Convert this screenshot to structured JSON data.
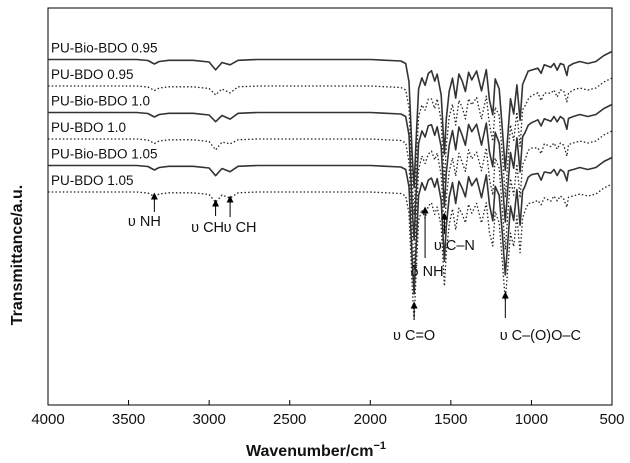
{
  "chart_data": {
    "type": "line",
    "xlabel": "Wavenumber/cm",
    "xlabel_sup": "−1",
    "ylabel": "Transmittance/a.u.",
    "xlim": [
      4000,
      500
    ],
    "x_ticks": [
      "4000",
      "3500",
      "3000",
      "2500",
      "2000",
      "1500",
      "1000",
      "500"
    ],
    "grid": false,
    "legend": "inline labels above each trace",
    "series": [
      {
        "name": "PU-Bio-BDO 0.95",
        "style": "solid",
        "offset": 5
      },
      {
        "name": "PU-BDO 0.95",
        "style": "dotted",
        "offset": 4
      },
      {
        "name": "PU-Bio-BDO 1.0",
        "style": "solid",
        "offset": 3
      },
      {
        "name": "PU-BDO 1.0",
        "style": "dotted",
        "offset": 2
      },
      {
        "name": "PU-Bio-BDO 1.05",
        "style": "solid",
        "offset": 1
      },
      {
        "name": "PU-BDO 1.05",
        "style": "dotted",
        "offset": 0
      }
    ],
    "baseline_shape": [
      [
        4000,
        0
      ],
      [
        3450,
        0
      ],
      [
        3380,
        -1.0
      ],
      [
        3340,
        -4.5
      ],
      [
        3310,
        -2.0
      ],
      [
        3250,
        -0.8
      ],
      [
        3100,
        -0.8
      ],
      [
        3000,
        -2.5
      ],
      [
        2960,
        -10
      ],
      [
        2920,
        -3
      ],
      [
        2870,
        -6
      ],
      [
        2820,
        -0.8
      ],
      [
        2700,
        0
      ],
      [
        2000,
        0
      ],
      [
        1810,
        -1.5
      ],
      [
        1780,
        -4
      ],
      [
        1760,
        -22
      ],
      [
        1740,
        -95
      ],
      [
        1728,
        -128
      ],
      [
        1718,
        -90
      ],
      [
        1700,
        -30
      ],
      [
        1680,
        -18
      ],
      [
        1660,
        -25
      ],
      [
        1640,
        -14
      ],
      [
        1620,
        -12
      ],
      [
        1600,
        -22
      ],
      [
        1585,
        -14
      ],
      [
        1560,
        -35
      ],
      [
        1540,
        -95
      ],
      [
        1528,
        -60
      ],
      [
        1510,
        -32
      ],
      [
        1490,
        -18
      ],
      [
        1470,
        -38
      ],
      [
        1450,
        -15
      ],
      [
        1430,
        -22
      ],
      [
        1410,
        -32
      ],
      [
        1390,
        -12
      ],
      [
        1370,
        -20
      ],
      [
        1340,
        -12
      ],
      [
        1310,
        -32
      ],
      [
        1280,
        -10
      ],
      [
        1260,
        -40
      ],
      [
        1240,
        -55
      ],
      [
        1225,
        -20
      ],
      [
        1200,
        -30
      ],
      [
        1180,
        -70
      ],
      [
        1162,
        -110
      ],
      [
        1145,
        -72
      ],
      [
        1130,
        -40
      ],
      [
        1110,
        -55
      ],
      [
        1090,
        -25
      ],
      [
        1070,
        -60
      ],
      [
        1055,
        -25
      ],
      [
        1040,
        -20
      ],
      [
        1020,
        -12
      ],
      [
        1000,
        -10
      ],
      [
        960,
        -8
      ],
      [
        940,
        -14
      ],
      [
        920,
        -6
      ],
      [
        880,
        -8
      ],
      [
        860,
        -4
      ],
      [
        840,
        -10
      ],
      [
        820,
        -4
      ],
      [
        800,
        -6
      ],
      [
        780,
        -16
      ],
      [
        770,
        -6
      ],
      [
        740,
        -4
      ],
      [
        700,
        -2
      ],
      [
        650,
        -4
      ],
      [
        600,
        -2
      ],
      [
        550,
        4
      ],
      [
        500,
        8
      ]
    ],
    "annotations": [
      {
        "label": "υ NH",
        "x": 3340
      },
      {
        "label": "υ CH",
        "x": 2960
      },
      {
        "label": "υ CH",
        "x": 2870
      },
      {
        "label": "υ C=O",
        "x": 1728
      },
      {
        "label": "δ NH",
        "x": 1660
      },
      {
        "label": "υ C–N",
        "x": 1540
      },
      {
        "label": "υ C–(O)O–C",
        "x": 1162
      }
    ]
  }
}
